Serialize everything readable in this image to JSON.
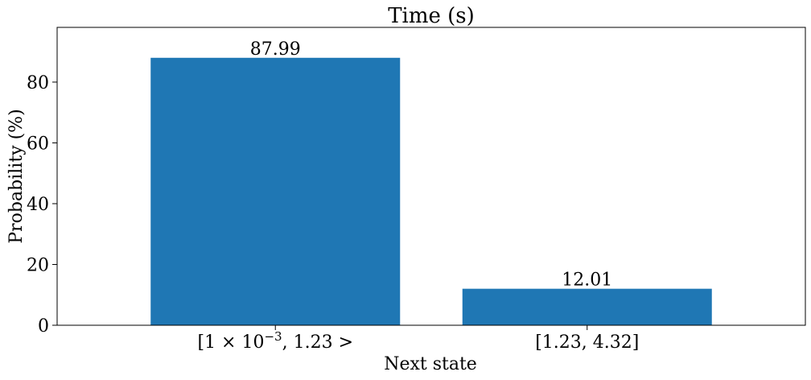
{
  "chart_data": {
    "type": "bar",
    "title": "Time (s)",
    "xlabel": "Next state",
    "ylabel": "Probability (%)",
    "categories": [
      {
        "main": "[1 × 10",
        "sup": "−3",
        "rest": ", 1.23 >"
      },
      {
        "main": "[1.23, 4.32]",
        "sup": "",
        "rest": ""
      }
    ],
    "values": [
      87.99,
      12.01
    ],
    "value_labels": [
      "87.99",
      "12.01"
    ],
    "ylim": [
      0,
      98
    ],
    "yticks": [
      0,
      20,
      40,
      60,
      80
    ],
    "grid": false,
    "bar_color": "#1f77b4"
  }
}
